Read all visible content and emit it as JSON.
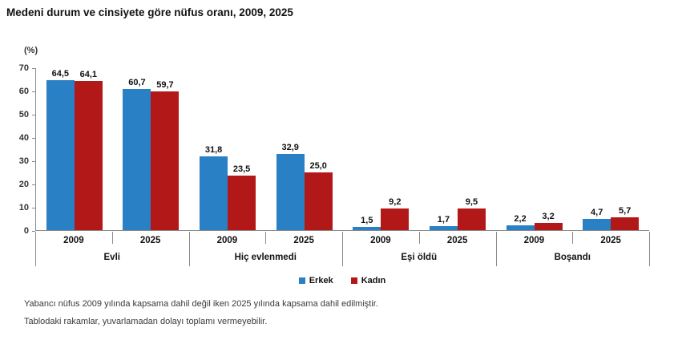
{
  "title": "Medeni durum ve cinsiyete göre nüfus oranı, 2009, 2025",
  "chart_data": {
    "type": "bar",
    "title": "Medeni durum ve cinsiyete göre nüfus oranı, 2009, 2025",
    "unit_label": "(%)",
    "ylim": [
      0,
      70
    ],
    "yticks": [
      0,
      10,
      20,
      30,
      40,
      50,
      60,
      70
    ],
    "grid": false,
    "legend_position": "bottom",
    "series": [
      {
        "name": "Erkek",
        "color": "#2980C4"
      },
      {
        "name": "Kadın",
        "color": "#B21818"
      }
    ],
    "categories": [
      "Evli",
      "Hiç evlenmedi",
      "Eşi öldü",
      "Boşandı"
    ],
    "groups": [
      {
        "category": "Evli",
        "entries": [
          {
            "year": "2009",
            "bars": [
              {
                "series": "Erkek",
                "value": 64.5,
                "display": "64,5"
              },
              {
                "series": "Kadın",
                "value": 64.1,
                "display": "64,1"
              }
            ]
          },
          {
            "year": "2025",
            "bars": [
              {
                "series": "Erkek",
                "value": 60.7,
                "display": "60,7"
              },
              {
                "series": "Kadın",
                "value": 59.7,
                "display": "59,7"
              }
            ]
          }
        ]
      },
      {
        "category": "Hiç evlenmedi",
        "entries": [
          {
            "year": "2009",
            "bars": [
              {
                "series": "Erkek",
                "value": 31.8,
                "display": "31,8"
              },
              {
                "series": "Kadın",
                "value": 23.5,
                "display": "23,5"
              }
            ]
          },
          {
            "year": "2025",
            "bars": [
              {
                "series": "Erkek",
                "value": 32.9,
                "display": "32,9"
              },
              {
                "series": "Kadın",
                "value": 25.0,
                "display": "25,0"
              }
            ]
          }
        ]
      },
      {
        "category": "Eşi öldü",
        "entries": [
          {
            "year": "2009",
            "bars": [
              {
                "series": "Erkek",
                "value": 1.5,
                "display": "1,5"
              },
              {
                "series": "Kadın",
                "value": 9.2,
                "display": "9,2"
              }
            ]
          },
          {
            "year": "2025",
            "bars": [
              {
                "series": "Erkek",
                "value": 1.7,
                "display": "1,7"
              },
              {
                "series": "Kadın",
                "value": 9.5,
                "display": "9,5"
              }
            ]
          }
        ]
      },
      {
        "category": "Boşandı",
        "entries": [
          {
            "year": "2009",
            "bars": [
              {
                "series": "Erkek",
                "value": 2.2,
                "display": "2,2"
              },
              {
                "series": "Kadın",
                "value": 3.2,
                "display": "3,2"
              }
            ]
          },
          {
            "year": "2025",
            "bars": [
              {
                "series": "Erkek",
                "value": 4.7,
                "display": "4,7"
              },
              {
                "series": "Kadın",
                "value": 5.7,
                "display": "5,7"
              }
            ]
          }
        ]
      }
    ]
  },
  "footnotes": [
    "Yabancı nüfus 2009 yılında kapsama dahil değil iken 2025 yılında kapsama dahil edilmiştir.",
    "Tablodaki rakamlar, yuvarlamadan dolayı toplamı vermeyebilir."
  ]
}
